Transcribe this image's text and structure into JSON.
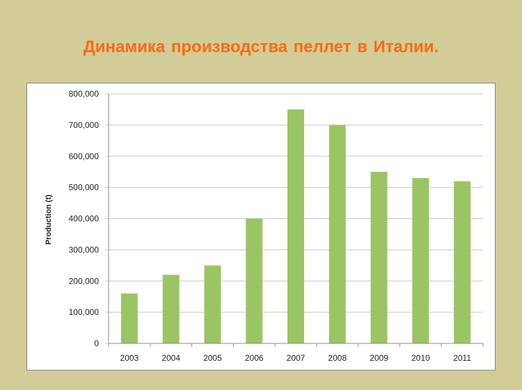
{
  "slide": {
    "title": "Динамика производства  пеллет в Италии."
  },
  "colors": {
    "background": "#d1cc98",
    "title": "#ff6a10",
    "bar": "#9bc564",
    "grid": "#c8c8c8"
  },
  "chart_data": {
    "type": "bar",
    "title": "",
    "xlabel": "",
    "ylabel": "Production (t)",
    "categories": [
      "2003",
      "2004",
      "2005",
      "2006",
      "2007",
      "2008",
      "2009",
      "2010",
      "2011"
    ],
    "series": [
      {
        "values": [
          160000,
          220000,
          250000,
          400000,
          750000,
          700000,
          550000,
          530000,
          520000
        ]
      }
    ],
    "ylim": [
      0,
      800000
    ],
    "yticks": [
      0,
      100000,
      200000,
      300000,
      400000,
      500000,
      600000,
      700000,
      800000
    ],
    "ytick_labels": [
      "0",
      "100,000",
      "200,000",
      "300,000",
      "400,000",
      "500,000",
      "600,000",
      "700,000",
      "800,000"
    ],
    "grid": true,
    "legend": "none"
  }
}
